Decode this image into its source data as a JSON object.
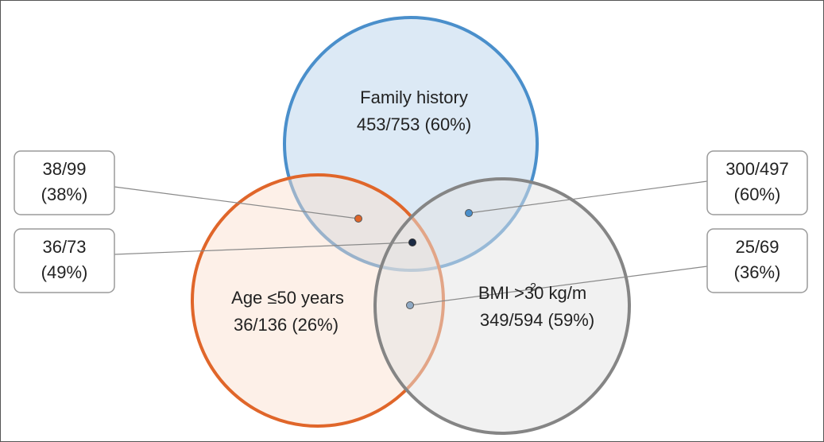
{
  "sets": [
    {
      "label": "Family history",
      "count": "453/753 (60%)"
    },
    {
      "label": "Age ≤50 years",
      "count": "36/136 (26%)"
    },
    {
      "label": "BMI >30 kg/m",
      "label_superscript": "2",
      "count": "349/594 (59%)"
    }
  ],
  "intersections": [
    {
      "count": "38/99",
      "percent": "(38%)"
    },
    {
      "count": "36/73",
      "percent": "(49%)"
    },
    {
      "count": "300/497",
      "percent": "(60%)"
    },
    {
      "count": "25/69",
      "percent": "(36%)"
    }
  ]
}
